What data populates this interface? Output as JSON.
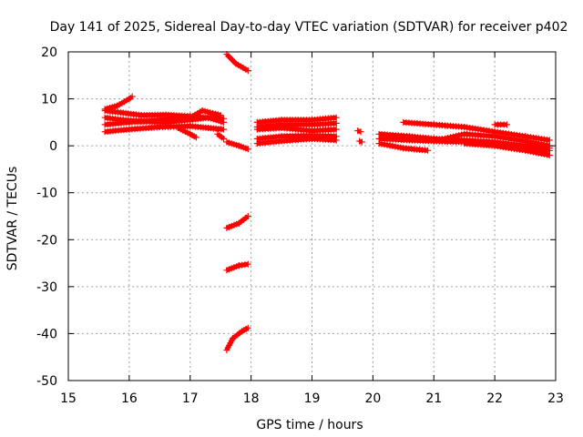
{
  "chart_data": {
    "type": "scatter",
    "title": "Day 141 of 2025, Sidereal Day-to-day VTEC variation (SDTVAR) for receiver p402",
    "xlabel": "GPS time / hours",
    "ylabel": "SDTVAR / TECUs",
    "xlim": [
      15,
      23
    ],
    "ylim": [
      -50,
      20
    ],
    "xticks": [
      15,
      16,
      17,
      18,
      19,
      20,
      21,
      22,
      23
    ],
    "yticks": [
      20,
      10,
      0,
      -10,
      -20,
      -30,
      -40,
      -50
    ],
    "grid": true,
    "legend": "none",
    "color": "#ff0000",
    "series": [
      {
        "x": [
          15.6,
          15.8,
          16.0,
          16.05
        ],
        "y": [
          7.8,
          8.5,
          10.0,
          10.5
        ]
      },
      {
        "x": [
          15.6,
          15.9,
          16.2,
          16.6,
          17.0,
          17.3,
          17.55
        ],
        "y": [
          7.5,
          7.0,
          6.5,
          6.6,
          6.3,
          6.0,
          5.8
        ]
      },
      {
        "x": [
          15.6,
          15.9,
          16.2,
          16.6,
          17.0,
          17.3,
          17.55
        ],
        "y": [
          6.0,
          5.5,
          5.2,
          5.0,
          5.5,
          6.0,
          5.0
        ]
      },
      {
        "x": [
          15.6,
          16.0,
          16.5,
          17.0,
          17.2,
          17.5
        ],
        "y": [
          4.5,
          5.0,
          5.5,
          6.0,
          7.5,
          6.5
        ]
      },
      {
        "x": [
          15.6,
          16.0,
          16.5,
          17.0,
          17.3,
          17.55
        ],
        "y": [
          3.0,
          3.5,
          4.0,
          4.2,
          3.8,
          3.5
        ]
      },
      {
        "x": [
          16.8,
          17.0,
          17.1
        ],
        "y": [
          3.8,
          2.5,
          1.8
        ]
      },
      {
        "x": [
          17.45,
          17.55
        ],
        "y": [
          2.5,
          1.5
        ]
      },
      {
        "x": [
          17.6,
          17.75,
          17.95
        ],
        "y": [
          19.5,
          17.5,
          16.0
        ]
      },
      {
        "x": [
          17.6,
          17.8,
          17.95
        ],
        "y": [
          0.8,
          0.0,
          -0.7
        ]
      },
      {
        "x": [
          17.6,
          17.8,
          17.95
        ],
        "y": [
          -17.5,
          -16.5,
          -15.0
        ]
      },
      {
        "x": [
          17.6,
          17.8,
          17.95
        ],
        "y": [
          -26.5,
          -25.5,
          -25.2
        ]
      },
      {
        "x": [
          17.6,
          17.7,
          17.85,
          17.95
        ],
        "y": [
          -43.5,
          -41.0,
          -39.5,
          -38.8
        ]
      },
      {
        "x": [
          18.1,
          18.5,
          19.0,
          19.4
        ],
        "y": [
          5.0,
          5.5,
          5.5,
          6.0
        ]
      },
      {
        "x": [
          18.1,
          18.5,
          19.0,
          19.4
        ],
        "y": [
          4.0,
          4.5,
          4.5,
          4.8
        ]
      },
      {
        "x": [
          18.1,
          18.5,
          19.0,
          19.4
        ],
        "y": [
          3.5,
          3.8,
          3.2,
          3.5
        ]
      },
      {
        "x": [
          18.1,
          18.5,
          19.0,
          19.4
        ],
        "y": [
          1.5,
          2.0,
          2.2,
          2.0
        ]
      },
      {
        "x": [
          18.1,
          18.5,
          19.0,
          19.4
        ],
        "y": [
          0.5,
          1.0,
          1.5,
          1.2
        ]
      },
      {
        "x": [
          19.75,
          19.8
        ],
        "y": [
          3.2,
          3.0
        ]
      },
      {
        "x": [
          19.78,
          19.82
        ],
        "y": [
          1.0,
          0.8
        ]
      },
      {
        "x": [
          20.1,
          20.6,
          21.0,
          21.5,
          22.0,
          22.5,
          22.9
        ],
        "y": [
          2.5,
          2.0,
          1.5,
          1.2,
          0.8,
          0.0,
          -0.5
        ]
      },
      {
        "x": [
          20.1,
          20.6,
          21.0,
          21.5,
          22.0,
          22.5,
          22.9
        ],
        "y": [
          1.5,
          1.2,
          1.0,
          0.8,
          0.2,
          -0.5,
          -1.0
        ]
      },
      {
        "x": [
          20.1,
          20.5,
          20.9
        ],
        "y": [
          0.5,
          -0.5,
          -1.0
        ]
      },
      {
        "x": [
          20.5,
          21.0,
          21.5,
          22.0,
          22.5,
          22.9
        ],
        "y": [
          5.0,
          4.5,
          4.0,
          3.0,
          2.0,
          1.2
        ]
      },
      {
        "x": [
          21.0,
          21.5,
          22.0,
          22.5,
          22.9
        ],
        "y": [
          1.0,
          2.5,
          2.0,
          1.0,
          0.0
        ]
      },
      {
        "x": [
          21.5,
          22.0,
          22.5,
          22.9
        ],
        "y": [
          0.5,
          0.0,
          -1.0,
          -2.0
        ]
      },
      {
        "x": [
          22.0,
          22.2
        ],
        "y": [
          4.5,
          4.5
        ]
      }
    ]
  }
}
